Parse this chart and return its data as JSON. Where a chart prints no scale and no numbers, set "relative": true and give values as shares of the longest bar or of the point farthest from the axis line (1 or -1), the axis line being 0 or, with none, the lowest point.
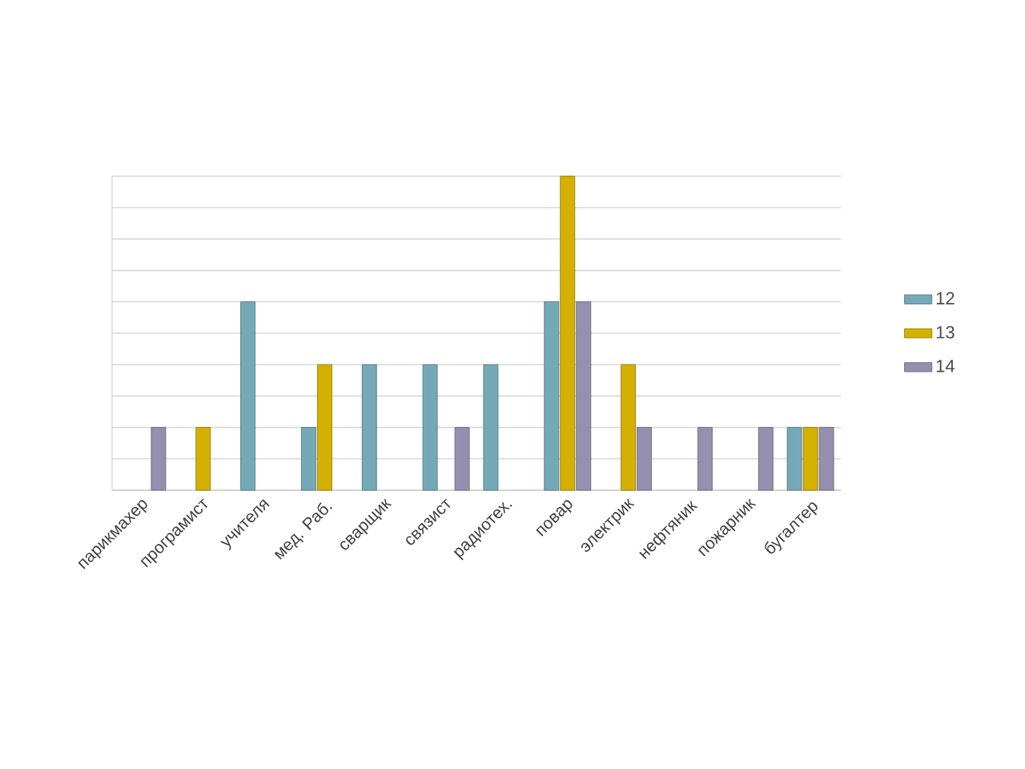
{
  "chart_data": {
    "type": "bar",
    "relative": true,
    "categories": [
      "парикмахер",
      "програмист",
      "учителя",
      "мед. Раб.",
      "сварщик",
      "связист",
      "радиотех.",
      "повар",
      "электрик",
      "нефтяник",
      "пожарник",
      "бугалтер"
    ],
    "series": [
      {
        "name": "12",
        "color": "#74aab8",
        "values": [
          null,
          null,
          0.6,
          0.2,
          0.4,
          0.4,
          0.4,
          0.6,
          null,
          null,
          null,
          0.2
        ]
      },
      {
        "name": "13",
        "color": "#d4b000",
        "values": [
          null,
          0.2,
          null,
          0.4,
          null,
          null,
          null,
          1,
          0.4,
          null,
          null,
          0.2
        ]
      },
      {
        "name": "14",
        "color": "#9590b0",
        "values": [
          0.2,
          null,
          null,
          null,
          null,
          0.2,
          null,
          0.6,
          0.2,
          0.2,
          0.2,
          0.2
        ]
      }
    ],
    "grid": "y",
    "legend": "right"
  }
}
